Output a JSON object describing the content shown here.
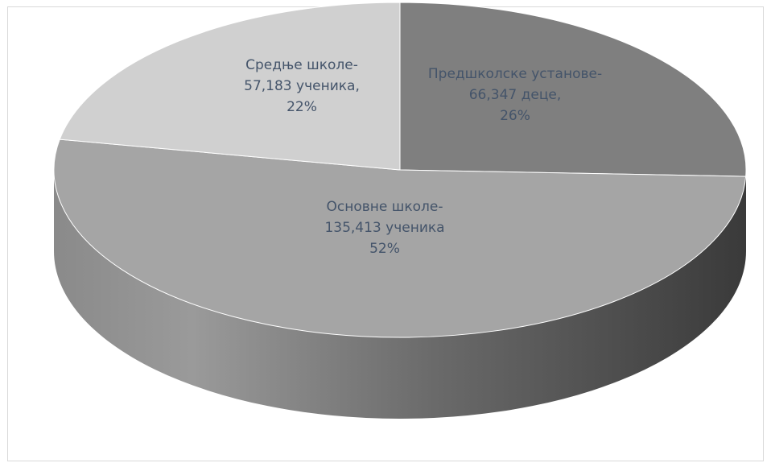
{
  "chart_data": {
    "type": "pie",
    "title": "",
    "slices": [
      {
        "lines": [
          "Предшколске установе-",
          "66,347  деце,",
          "26%"
        ],
        "value": 66347,
        "percent": 26,
        "color": "#7f7f7f"
      },
      {
        "lines": [
          "Основне школе-",
          "135,413 ученика",
          "52%"
        ],
        "value": 135413,
        "percent": 52,
        "color": "#a5a5a5"
      },
      {
        "lines": [
          "Средње школе-",
          "57,183 ученика,",
          "22%"
        ],
        "value": 57183,
        "percent": 22,
        "color": "#d0d0d0"
      }
    ],
    "style": "3d",
    "legend": "none"
  }
}
